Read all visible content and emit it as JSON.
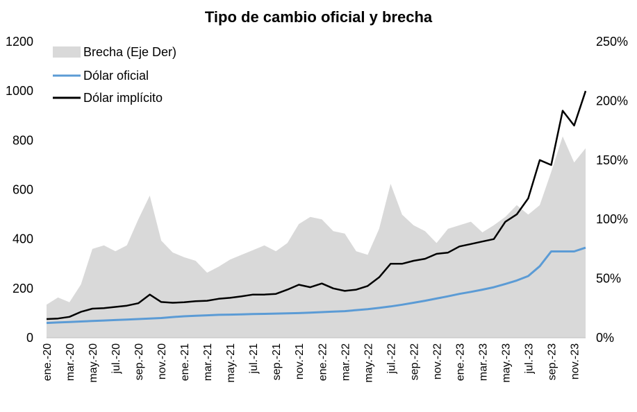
{
  "chart_data": {
    "type": "line",
    "title": "Tipo de cambio oficial y brecha",
    "x_start": "2020-01",
    "x_end": "2023-12",
    "x_ticks": [
      "ene.-20",
      "mar.-20",
      "may.-20",
      "jul.-20",
      "sep.-20",
      "nov.-20",
      "ene.-21",
      "mar.-21",
      "may.-21",
      "jul.-21",
      "sep.-21",
      "nov.-21",
      "ene.-22",
      "mar.-22",
      "may.-22",
      "jul.-22",
      "sep.-22",
      "nov.-22",
      "ene.-23",
      "mar.-23",
      "may.-23",
      "jul.-23",
      "sep.-23",
      "nov.-23"
    ],
    "y_left": {
      "ticks": [
        "0",
        "200",
        "400",
        "600",
        "800",
        "1000",
        "1200"
      ],
      "ylim": [
        0,
        1200
      ]
    },
    "y_right": {
      "ticks": [
        "0%",
        "50%",
        "100%",
        "150%",
        "200%",
        "250%"
      ],
      "ylim": [
        0,
        250
      ]
    },
    "colors": {
      "brecha": "#d9d9d9",
      "oficial": "#5b9bd5",
      "implicito": "#000000"
    },
    "legend_position": "top-left",
    "series": [
      {
        "name": "Brecha (Eje Der)",
        "type": "area",
        "axis": "right",
        "x": [
          "2020-01",
          "2020-02",
          "2020-03",
          "2020-04",
          "2020-05",
          "2020-06",
          "2020-07",
          "2020-08",
          "2020-09",
          "2020-10",
          "2020-11",
          "2020-12",
          "2021-01",
          "2021-02",
          "2021-03",
          "2021-04",
          "2021-05",
          "2021-06",
          "2021-07",
          "2021-08",
          "2021-09",
          "2021-10",
          "2021-11",
          "2021-12",
          "2022-01",
          "2022-02",
          "2022-03",
          "2022-04",
          "2022-05",
          "2022-06",
          "2022-07",
          "2022-08",
          "2022-09",
          "2022-10",
          "2022-11",
          "2022-12",
          "2023-01",
          "2023-02",
          "2023-03",
          "2023-04",
          "2023-05",
          "2023-06",
          "2023-07",
          "2023-08",
          "2023-09",
          "2023-10",
          "2023-11",
          "2023-12"
        ],
        "values": [
          28,
          34,
          30,
          45,
          75,
          78,
          73,
          78,
          100,
          120,
          82,
          72,
          68,
          65,
          55,
          60,
          66,
          70,
          74,
          78,
          73,
          80,
          96,
          102,
          100,
          90,
          88,
          73,
          70,
          92,
          130,
          104,
          95,
          90,
          80,
          92,
          95,
          98,
          89,
          95,
          102,
          112,
          104,
          112,
          140,
          170,
          148,
          160
        ]
      },
      {
        "name": "Dólar oficial",
        "axis": "left",
        "x": [
          "2020-01",
          "2020-02",
          "2020-03",
          "2020-04",
          "2020-05",
          "2020-06",
          "2020-07",
          "2020-08",
          "2020-09",
          "2020-10",
          "2020-11",
          "2020-12",
          "2021-01",
          "2021-02",
          "2021-03",
          "2021-04",
          "2021-05",
          "2021-06",
          "2021-07",
          "2021-08",
          "2021-09",
          "2021-10",
          "2021-11",
          "2021-12",
          "2022-01",
          "2022-02",
          "2022-03",
          "2022-04",
          "2022-05",
          "2022-06",
          "2022-07",
          "2022-08",
          "2022-09",
          "2022-10",
          "2022-11",
          "2022-12",
          "2023-01",
          "2023-02",
          "2023-03",
          "2023-04",
          "2023-05",
          "2023-06",
          "2023-07",
          "2023-08",
          "2023-09",
          "2023-10",
          "2023-11",
          "2023-12"
        ],
        "values": [
          60,
          62,
          64,
          66,
          68,
          70,
          72,
          74,
          76,
          78,
          80,
          84,
          87,
          89,
          91,
          93,
          94,
          95,
          96,
          97,
          98,
          99,
          100,
          102,
          104,
          106,
          108,
          112,
          116,
          121,
          127,
          134,
          142,
          150,
          159,
          168,
          178,
          186,
          195,
          205,
          218,
          232,
          250,
          290,
          350,
          350,
          350,
          365
        ]
      },
      {
        "name": "Dólar implícito",
        "axis": "left",
        "x": [
          "2020-01",
          "2020-02",
          "2020-03",
          "2020-04",
          "2020-05",
          "2020-06",
          "2020-07",
          "2020-08",
          "2020-09",
          "2020-10",
          "2020-11",
          "2020-12",
          "2021-01",
          "2021-02",
          "2021-03",
          "2021-04",
          "2021-05",
          "2021-06",
          "2021-07",
          "2021-08",
          "2021-09",
          "2021-10",
          "2021-11",
          "2021-12",
          "2022-01",
          "2022-02",
          "2022-03",
          "2022-04",
          "2022-05",
          "2022-06",
          "2022-07",
          "2022-08",
          "2022-09",
          "2022-10",
          "2022-11",
          "2022-12",
          "2023-01",
          "2023-02",
          "2023-03",
          "2023-04",
          "2023-05",
          "2023-06",
          "2023-07",
          "2023-08",
          "2023-09",
          "2023-10",
          "2023-11",
          "2023-12"
        ],
        "values": [
          76,
          78,
          85,
          105,
          118,
          120,
          125,
          130,
          140,
          175,
          145,
          142,
          144,
          148,
          150,
          158,
          162,
          168,
          175,
          175,
          178,
          195,
          215,
          205,
          220,
          200,
          190,
          195,
          210,
          245,
          300,
          300,
          312,
          320,
          340,
          345,
          370,
          380,
          390,
          400,
          470,
          500,
          565,
          720,
          700,
          920,
          860,
          1000
        ]
      }
    ]
  }
}
